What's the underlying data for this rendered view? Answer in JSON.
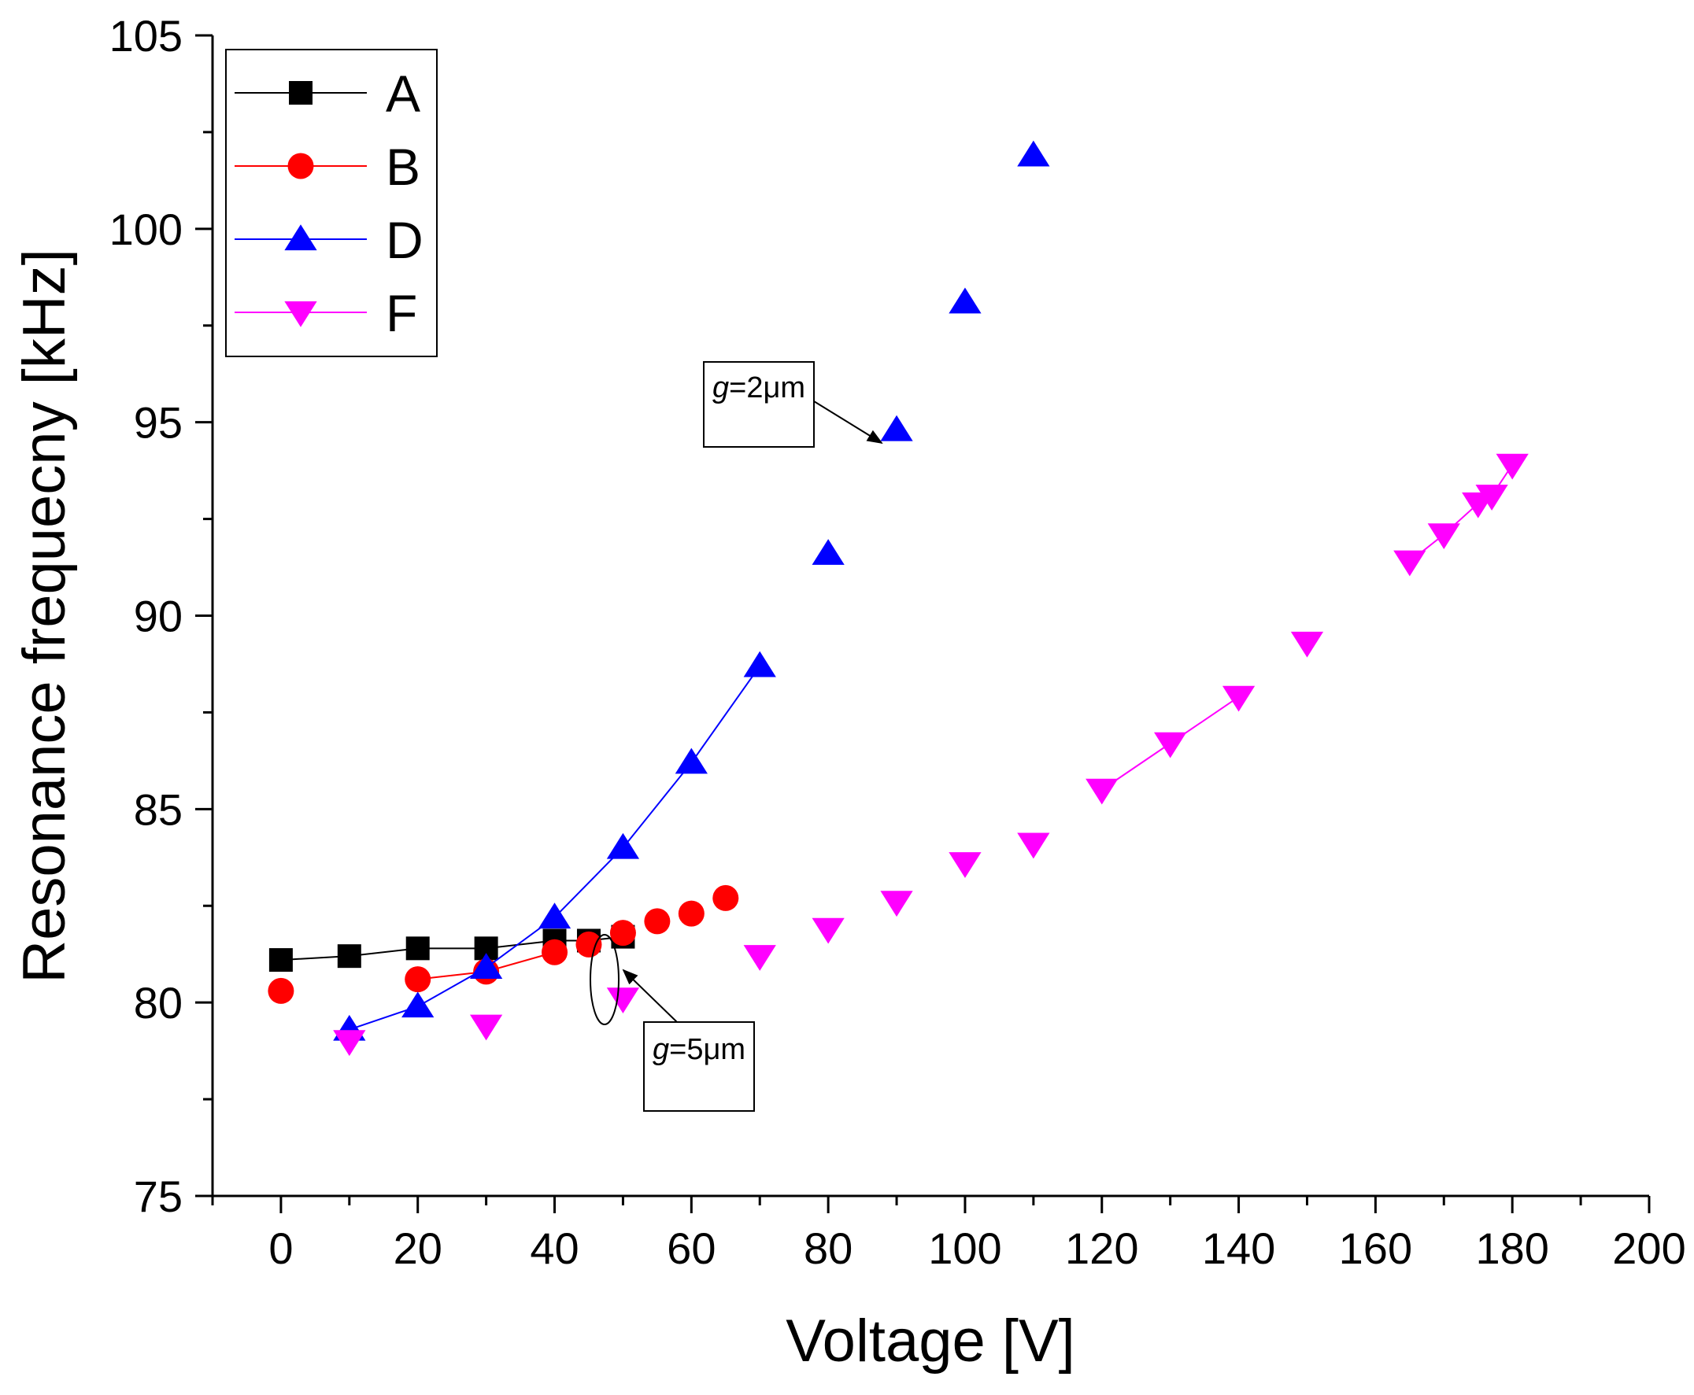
{
  "chart_data": {
    "type": "scatter",
    "xlabel": "Voltage [V]",
    "ylabel": "Resonance frequecny [kHz]",
    "xlim": [
      -10,
      200
    ],
    "ylim": [
      75,
      105
    ],
    "xticks": [
      0,
      20,
      40,
      60,
      80,
      100,
      120,
      140,
      160,
      180,
      200
    ],
    "yticks": [
      75,
      80,
      85,
      90,
      95,
      100,
      105
    ],
    "grid": false,
    "legend_position": "top-left",
    "series": [
      {
        "name": "A",
        "color": "#000000",
        "marker": "square",
        "points": [
          [
            0,
            81.1
          ],
          [
            10,
            81.2
          ],
          [
            20,
            81.4
          ],
          [
            30,
            81.4
          ],
          [
            40,
            81.6
          ],
          [
            45,
            81.6
          ],
          [
            50,
            81.7
          ]
        ],
        "segments": [
          [
            0,
            6
          ]
        ]
      },
      {
        "name": "B",
        "color": "#ff0000",
        "marker": "circle",
        "points": [
          [
            0,
            80.3
          ],
          [
            20,
            80.6
          ],
          [
            30,
            80.8
          ],
          [
            40,
            81.3
          ],
          [
            45,
            81.5
          ],
          [
            50,
            81.8
          ],
          [
            55,
            82.1
          ],
          [
            60,
            82.3
          ],
          [
            65,
            82.7
          ]
        ],
        "segments": [
          [
            1,
            3
          ]
        ]
      },
      {
        "name": "D",
        "color": "#0000ff",
        "marker": "triangle-up",
        "points": [
          [
            10,
            79.3
          ],
          [
            20,
            79.9
          ],
          [
            30,
            80.9
          ],
          [
            40,
            82.2
          ],
          [
            50,
            84.0
          ],
          [
            60,
            86.2
          ],
          [
            70,
            88.7
          ],
          [
            80,
            91.6
          ],
          [
            90,
            94.8
          ],
          [
            100,
            98.1
          ],
          [
            110,
            101.9
          ]
        ],
        "segments": [
          [
            0,
            6
          ]
        ]
      },
      {
        "name": "F",
        "color": "#ff00ff",
        "marker": "triangle-down",
        "points": [
          [
            10,
            79.0
          ],
          [
            30,
            79.4
          ],
          [
            50,
            80.1
          ],
          [
            70,
            81.2
          ],
          [
            80,
            81.9
          ],
          [
            90,
            82.6
          ],
          [
            100,
            83.6
          ],
          [
            110,
            84.1
          ],
          [
            120,
            85.5
          ],
          [
            130,
            86.7
          ],
          [
            140,
            87.9
          ],
          [
            150,
            89.3
          ],
          [
            165,
            91.4
          ],
          [
            170,
            92.1
          ],
          [
            175,
            92.9
          ],
          [
            177,
            93.1
          ],
          [
            180,
            93.9
          ]
        ],
        "segments": [
          [
            8,
            10
          ],
          [
            12,
            16
          ]
        ]
      }
    ],
    "annotations": [
      {
        "label_prefix": "g",
        "label_suffix": "=2μm"
      },
      {
        "label_prefix": "g",
        "label_suffix": "=5μm"
      }
    ]
  }
}
